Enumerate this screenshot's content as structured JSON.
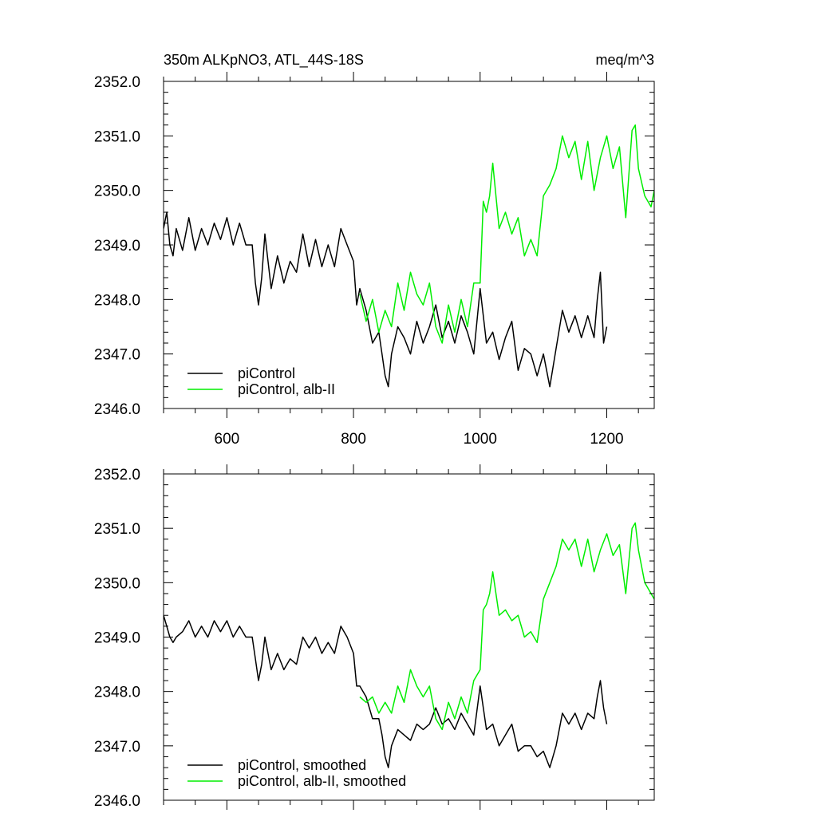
{
  "chart_data": [
    {
      "type": "line",
      "title": "350m ALKpNO3, ATL_44S-18S",
      "units": "meq/m^3",
      "xlim": [
        500,
        1275
      ],
      "ylim": [
        2346.0,
        2352.0
      ],
      "x_ticks": [
        600,
        800,
        1000,
        1200
      ],
      "x_tick_labels": [
        "600",
        "800",
        "1000",
        "1200"
      ],
      "y_ticks": [
        2346,
        2347,
        2348,
        2349,
        2350,
        2351,
        2352
      ],
      "y_tick_labels": [
        "2346.0",
        "2347.0",
        "2348.0",
        "2349.0",
        "2350.0",
        "2351.0",
        "2352.0"
      ],
      "grid": false,
      "legend_position": "bottom-left",
      "series": [
        {
          "name": "piControl",
          "color": "#000000",
          "x": [
            500,
            505,
            510,
            515,
            520,
            530,
            540,
            550,
            560,
            570,
            580,
            590,
            600,
            610,
            620,
            630,
            640,
            645,
            650,
            655,
            660,
            670,
            680,
            690,
            700,
            710,
            720,
            730,
            740,
            750,
            760,
            770,
            780,
            790,
            800,
            805,
            810,
            820,
            830,
            840,
            845,
            850,
            855,
            860,
            870,
            880,
            890,
            900,
            910,
            920,
            930,
            940,
            950,
            960,
            970,
            980,
            990,
            1000,
            1010,
            1020,
            1030,
            1040,
            1050,
            1060,
            1070,
            1080,
            1090,
            1100,
            1110,
            1120,
            1130,
            1140,
            1150,
            1160,
            1170,
            1180,
            1185,
            1190,
            1195,
            1200
          ],
          "y": [
            2349.3,
            2349.6,
            2349.0,
            2348.8,
            2349.3,
            2348.9,
            2349.5,
            2348.9,
            2349.3,
            2349.0,
            2349.4,
            2349.1,
            2349.5,
            2349.0,
            2349.4,
            2349.0,
            2349.0,
            2348.3,
            2347.9,
            2348.4,
            2349.2,
            2348.2,
            2348.8,
            2348.3,
            2348.7,
            2348.5,
            2349.2,
            2348.6,
            2349.1,
            2348.6,
            2349.0,
            2348.6,
            2349.3,
            2349.0,
            2348.7,
            2347.9,
            2348.2,
            2347.8,
            2347.2,
            2347.4,
            2347.0,
            2346.6,
            2346.4,
            2347.0,
            2347.5,
            2347.3,
            2347.0,
            2347.6,
            2347.2,
            2347.5,
            2347.9,
            2347.3,
            2347.6,
            2347.2,
            2347.7,
            2347.4,
            2347.0,
            2348.2,
            2347.2,
            2347.4,
            2346.9,
            2347.3,
            2347.6,
            2346.7,
            2347.1,
            2347.0,
            2346.6,
            2347.0,
            2346.4,
            2347.1,
            2347.8,
            2347.4,
            2347.7,
            2347.3,
            2347.7,
            2347.3,
            2348.0,
            2348.5,
            2347.2,
            2347.5
          ]
        },
        {
          "name": "piControl, alb-II",
          "color": "#00ee00",
          "x": [
            810,
            820,
            830,
            840,
            850,
            860,
            870,
            880,
            890,
            900,
            910,
            920,
            930,
            940,
            950,
            960,
            970,
            980,
            990,
            1000,
            1005,
            1010,
            1015,
            1020,
            1030,
            1040,
            1050,
            1060,
            1070,
            1080,
            1090,
            1100,
            1110,
            1120,
            1130,
            1140,
            1150,
            1160,
            1170,
            1180,
            1190,
            1200,
            1210,
            1220,
            1230,
            1240,
            1245,
            1250,
            1260,
            1270,
            1275
          ],
          "y": [
            2348.1,
            2347.6,
            2348.0,
            2347.4,
            2347.8,
            2347.5,
            2348.3,
            2347.8,
            2348.5,
            2348.1,
            2347.9,
            2348.3,
            2347.5,
            2347.2,
            2347.9,
            2347.4,
            2348.0,
            2347.5,
            2348.3,
            2348.3,
            2349.8,
            2349.6,
            2349.9,
            2350.5,
            2349.3,
            2349.6,
            2349.2,
            2349.5,
            2348.8,
            2349.1,
            2348.8,
            2349.9,
            2350.1,
            2350.4,
            2351.0,
            2350.6,
            2350.9,
            2350.2,
            2350.9,
            2350.0,
            2350.6,
            2351.0,
            2350.4,
            2350.8,
            2349.5,
            2351.1,
            2351.2,
            2350.4,
            2349.9,
            2349.7,
            2350.0
          ]
        }
      ]
    },
    {
      "type": "line",
      "title": "",
      "xlim": [
        500,
        1275
      ],
      "ylim": [
        2346.0,
        2352.0
      ],
      "x_ticks": [
        600,
        800,
        1000,
        1200
      ],
      "y_ticks": [
        2346,
        2347,
        2348,
        2349,
        2350,
        2351,
        2352
      ],
      "y_tick_labels": [
        "2346.0",
        "2347.0",
        "2348.0",
        "2349.0",
        "2350.0",
        "2351.0",
        "2352.0"
      ],
      "grid": false,
      "legend_position": "bottom-left",
      "series": [
        {
          "name": "piControl, smoothed",
          "color": "#000000",
          "x": [
            500,
            505,
            510,
            515,
            520,
            530,
            540,
            550,
            560,
            570,
            580,
            590,
            600,
            610,
            620,
            630,
            640,
            645,
            650,
            655,
            660,
            670,
            680,
            690,
            700,
            710,
            720,
            730,
            740,
            750,
            760,
            770,
            780,
            790,
            800,
            805,
            810,
            820,
            830,
            840,
            845,
            850,
            855,
            860,
            870,
            880,
            890,
            900,
            910,
            920,
            930,
            940,
            950,
            960,
            970,
            980,
            990,
            1000,
            1010,
            1020,
            1030,
            1040,
            1050,
            1060,
            1070,
            1080,
            1090,
            1100,
            1110,
            1120,
            1130,
            1140,
            1150,
            1160,
            1170,
            1180,
            1185,
            1190,
            1195,
            1200
          ],
          "y": [
            2349.4,
            2349.2,
            2349.0,
            2348.9,
            2349.0,
            2349.1,
            2349.3,
            2349.0,
            2349.2,
            2349.0,
            2349.3,
            2349.1,
            2349.3,
            2349.0,
            2349.2,
            2349.0,
            2349.0,
            2348.6,
            2348.2,
            2348.5,
            2349.0,
            2348.4,
            2348.7,
            2348.4,
            2348.6,
            2348.5,
            2349.0,
            2348.8,
            2349.0,
            2348.7,
            2348.9,
            2348.7,
            2349.2,
            2349.0,
            2348.7,
            2348.1,
            2348.1,
            2347.9,
            2347.5,
            2347.5,
            2347.2,
            2346.8,
            2346.6,
            2347.0,
            2347.3,
            2347.2,
            2347.1,
            2347.4,
            2347.3,
            2347.4,
            2347.7,
            2347.4,
            2347.5,
            2347.3,
            2347.6,
            2347.4,
            2347.2,
            2348.1,
            2347.3,
            2347.4,
            2347.0,
            2347.2,
            2347.4,
            2346.9,
            2347.0,
            2347.0,
            2346.8,
            2346.9,
            2346.6,
            2347.0,
            2347.6,
            2347.4,
            2347.6,
            2347.3,
            2347.6,
            2347.5,
            2347.9,
            2348.2,
            2347.7,
            2347.4
          ]
        },
        {
          "name": "piControl, alb-II, smoothed",
          "color": "#00ee00",
          "x": [
            810,
            820,
            830,
            840,
            850,
            860,
            870,
            880,
            890,
            900,
            910,
            920,
            930,
            940,
            950,
            960,
            970,
            980,
            990,
            1000,
            1005,
            1010,
            1015,
            1020,
            1030,
            1040,
            1050,
            1060,
            1070,
            1080,
            1090,
            1100,
            1110,
            1120,
            1130,
            1140,
            1150,
            1160,
            1170,
            1180,
            1190,
            1200,
            1210,
            1220,
            1230,
            1240,
            1245,
            1250,
            1260,
            1270,
            1275
          ],
          "y": [
            2347.9,
            2347.8,
            2347.9,
            2347.6,
            2347.8,
            2347.6,
            2348.1,
            2347.8,
            2348.4,
            2348.1,
            2347.9,
            2348.1,
            2347.5,
            2347.3,
            2347.8,
            2347.5,
            2347.9,
            2347.6,
            2348.2,
            2348.4,
            2349.5,
            2349.6,
            2349.8,
            2350.2,
            2349.4,
            2349.5,
            2349.3,
            2349.4,
            2349.0,
            2349.1,
            2348.9,
            2349.7,
            2350.0,
            2350.3,
            2350.8,
            2350.6,
            2350.8,
            2350.3,
            2350.8,
            2350.2,
            2350.6,
            2350.9,
            2350.5,
            2350.7,
            2349.8,
            2351.0,
            2351.1,
            2350.6,
            2350.0,
            2349.8,
            2349.7
          ]
        }
      ]
    }
  ]
}
